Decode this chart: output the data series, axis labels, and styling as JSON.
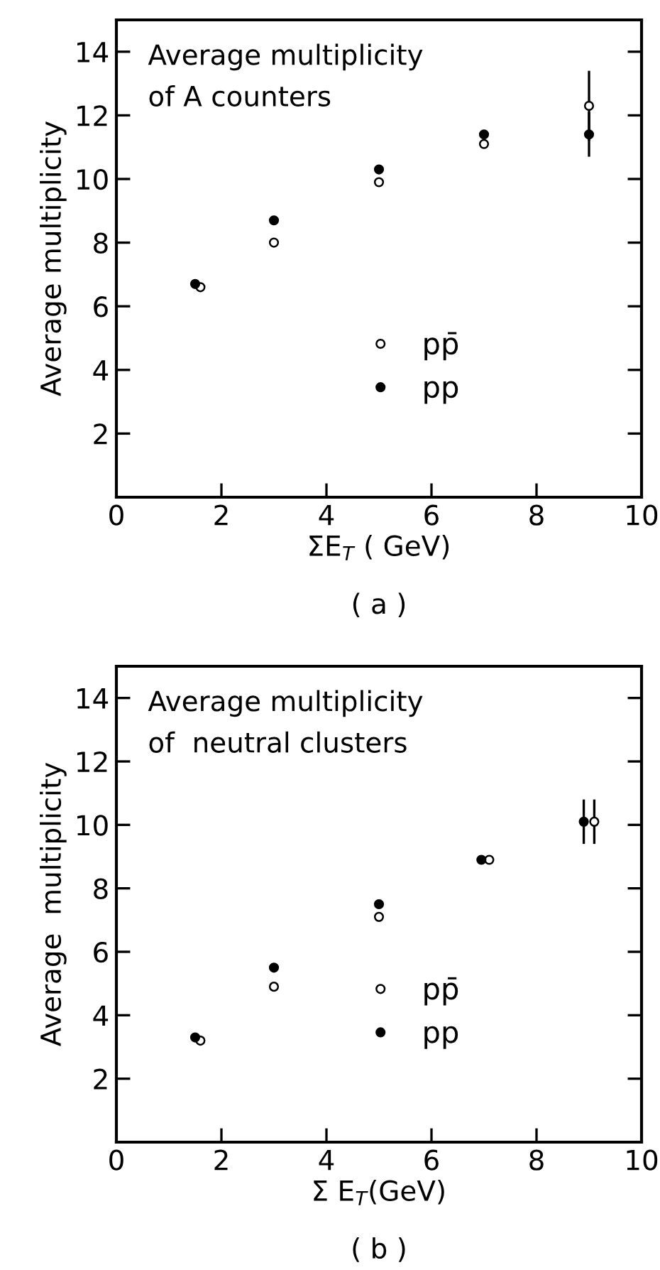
{
  "chart_data": [
    {
      "type": "scatter",
      "xlabel": "ΣE$_{T}$ ( GeV)",
      "ylabel": "Average multiplicity",
      "xlim": [
        0,
        10
      ],
      "ylim": [
        0,
        15
      ],
      "xticks": [
        0,
        2,
        4,
        6,
        8,
        10
      ],
      "yticks": [
        2,
        4,
        6,
        8,
        10,
        12,
        14
      ],
      "legend": "bottom",
      "grid": false,
      "annotations": [
        "Average multiplicity\nof A counters",
        "( a )"
      ],
      "series": [
        {
          "name": "pp̄",
          "color": "#ffffff",
          "x": [
            1.6,
            3,
            5,
            7,
            9
          ],
          "values": [
            6.6,
            8.0,
            9.9,
            11.1,
            12.3
          ],
          "errors": [
            null,
            null,
            null,
            null,
            1.1
          ]
        },
        {
          "name": "pp",
          "color": "#000000",
          "x": [
            1.5,
            3,
            5,
            7,
            9
          ],
          "values": [
            6.7,
            8.7,
            10.3,
            11.4,
            11.4
          ],
          "errors": [
            null,
            null,
            null,
            null,
            0.7
          ]
        }
      ]
    },
    {
      "type": "scatter",
      "xlabel": "Σ E$_{T}$(GeV)",
      "ylabel": "Average  multiplicity",
      "xlim": [
        0,
        10
      ],
      "ylim": [
        0,
        15
      ],
      "xticks": [
        0,
        2,
        4,
        6,
        8,
        10
      ],
      "yticks": [
        2,
        4,
        6,
        8,
        10,
        12,
        14
      ],
      "legend": "bottom",
      "grid": false,
      "annotations": [
        "Average multiplicity\nof  neutral clusters",
        "( b )"
      ],
      "series": [
        {
          "name": "pp̄",
          "color": "#ffffff",
          "x": [
            1.6,
            3,
            5,
            7.1,
            9.1
          ],
          "values": [
            3.2,
            4.9,
            7.1,
            8.9,
            10.1
          ],
          "errors": [
            null,
            null,
            null,
            null,
            0.7
          ]
        },
        {
          "name": "pp",
          "color": "#000000",
          "x": [
            1.5,
            3,
            5,
            6.95,
            8.9
          ],
          "values": [
            3.3,
            5.5,
            7.5,
            8.9,
            10.1
          ],
          "errors": [
            null,
            null,
            null,
            null,
            0.7
          ]
        }
      ]
    }
  ]
}
